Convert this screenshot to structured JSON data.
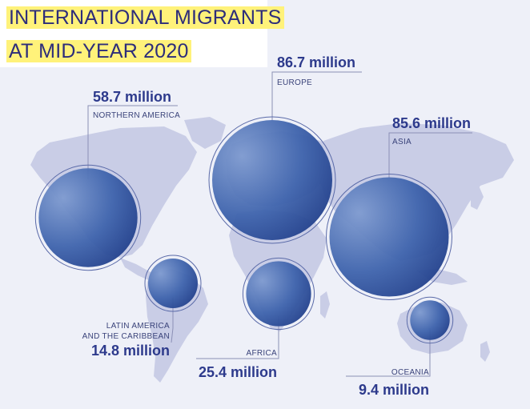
{
  "chart_data": {
    "type": "bubble-map",
    "title_lines": [
      "INTERNATIONAL MIGRANTS",
      "AT MID-YEAR 2020"
    ],
    "unit": "million",
    "regions": [
      {
        "name": "EUROPE",
        "value": 86.7,
        "value_label": "86.7 million"
      },
      {
        "name": "ASIA",
        "value": 85.6,
        "value_label": "85.6 million"
      },
      {
        "name": "NORTHERN AMERICA",
        "value": 58.7,
        "value_label": "58.7 million"
      },
      {
        "name": "AFRICA",
        "value": 25.4,
        "value_label": "25.4 million"
      },
      {
        "name": "LATIN AMERICA AND THE CARIBBEAN",
        "name_lines": [
          "LATIN AMERICA",
          "AND THE CARIBBEAN"
        ],
        "value": 14.8,
        "value_label": "14.8 million"
      },
      {
        "name": "OCEANIA",
        "value": 9.4,
        "value_label": "9.4 million"
      }
    ]
  },
  "colors": {
    "background": "#eef0f8",
    "land": "#c9cde6",
    "bubble_dark": "#1f3f8f",
    "bubble_light": "#6f8fc6",
    "leader_line": "#8b8fb5",
    "title_highlight": "#fff27a",
    "title_text": "#2d2d7a",
    "value_text": "#2d3a8c"
  }
}
